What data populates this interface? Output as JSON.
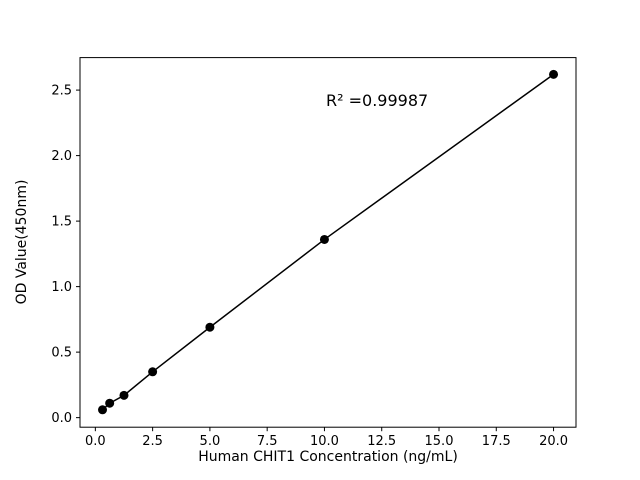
{
  "chart_data": {
    "type": "scatter",
    "title": "",
    "xlabel": "Human CHIT1 Concentration (ng/mL)",
    "ylabel": "OD Value(450nm)",
    "annotation": "R² =0.99987",
    "x": [
      0.3125,
      0.625,
      1.25,
      2.5,
      5,
      10,
      20
    ],
    "y": [
      0.06,
      0.11,
      0.17,
      0.35,
      0.69,
      1.36,
      2.62
    ],
    "xlim": [
      -0.67,
      20.98
    ],
    "ylim": [
      -0.073,
      2.748
    ],
    "xticks": [
      0.0,
      2.5,
      5.0,
      7.5,
      10.0,
      12.5,
      15.0,
      17.5,
      20.0
    ],
    "xtick_labels": [
      "0.0",
      "2.5",
      "5.0",
      "7.5",
      "10.0",
      "12.5",
      "15.0",
      "17.5",
      "20.0"
    ],
    "yticks": [
      0.0,
      0.5,
      1.0,
      1.5,
      2.0,
      2.5
    ],
    "ytick_labels": [
      "0.0",
      "0.5",
      "1.0",
      "1.5",
      "2.0",
      "2.5"
    ],
    "grid": false,
    "legend": "none",
    "line_color": "#000000",
    "marker_color": "#000000",
    "background_color": "#ffffff"
  }
}
